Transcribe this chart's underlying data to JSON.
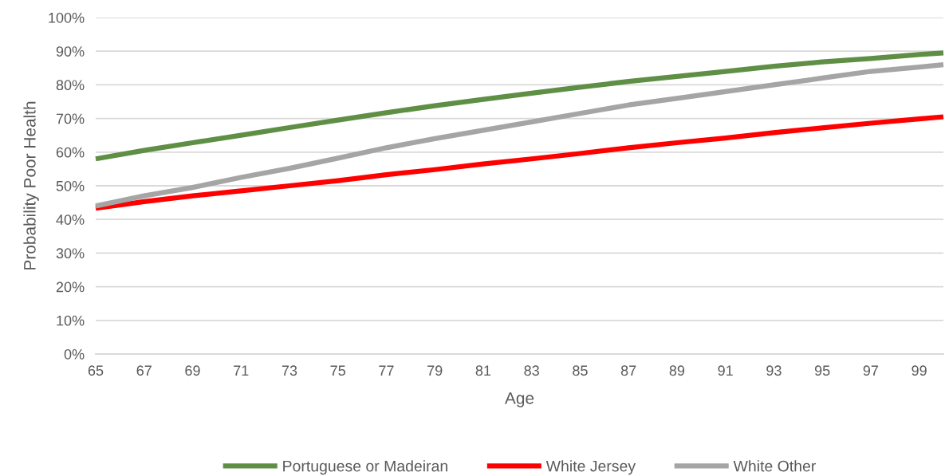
{
  "chart_data": {
    "type": "line",
    "xlabel": "Age",
    "ylabel": "Probability Poor Health",
    "xlim": [
      65,
      100
    ],
    "xticks": [
      65,
      67,
      69,
      71,
      73,
      75,
      77,
      79,
      81,
      83,
      85,
      87,
      89,
      91,
      93,
      95,
      97,
      99
    ],
    "ylim": [
      0,
      100
    ],
    "yticks": [
      {
        "value": 0,
        "label": "0%"
      },
      {
        "value": 10,
        "label": "10%"
      },
      {
        "value": 20,
        "label": "20%"
      },
      {
        "value": 30,
        "label": "30%"
      },
      {
        "value": 40,
        "label": "40%"
      },
      {
        "value": 50,
        "label": "50%"
      },
      {
        "value": 60,
        "label": "60%"
      },
      {
        "value": 70,
        "label": "70%"
      },
      {
        "value": 80,
        "label": "80%"
      },
      {
        "value": 90,
        "label": "90%"
      },
      {
        "value": 100,
        "label": "100%"
      }
    ],
    "grid": "y",
    "legend": "bottom",
    "marker": "none",
    "line_style": "solid",
    "x": [
      65,
      67,
      69,
      71,
      73,
      75,
      77,
      79,
      81,
      83,
      85,
      87,
      89,
      91,
      93,
      95,
      97,
      99,
      100
    ],
    "series": [
      {
        "name": "Portuguese or Madeiran",
        "color": "#5f8f45",
        "values": [
          58,
          60.5,
          62.8,
          65,
          67.3,
          69.5,
          71.7,
          73.8,
          75.7,
          77.5,
          79.3,
          81,
          82.5,
          84,
          85.5,
          86.8,
          87.8,
          89,
          89.5
        ]
      },
      {
        "name": "White Jersey",
        "color": "#ff0000",
        "values": [
          43.3,
          45.3,
          47,
          48.5,
          50,
          51.5,
          53.3,
          54.8,
          56.5,
          58,
          59.6,
          61.3,
          62.8,
          64.2,
          65.8,
          67.2,
          68.6,
          69.9,
          70.5
        ]
      },
      {
        "name": "White Other",
        "color": "#a5a5a5",
        "values": [
          44,
          47,
          49.5,
          52.5,
          55.2,
          58.2,
          61.3,
          64,
          66.5,
          69,
          71.5,
          74,
          76,
          78,
          80,
          82,
          84,
          85.3,
          86
        ]
      }
    ]
  }
}
